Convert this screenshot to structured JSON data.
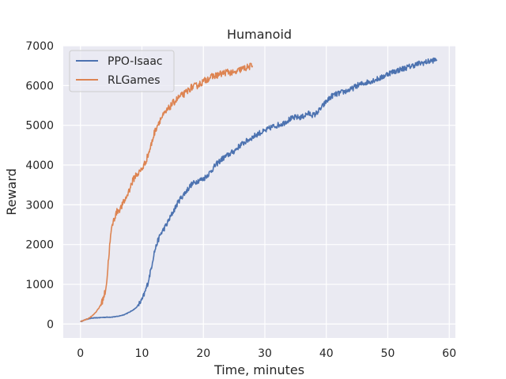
{
  "chart_data": {
    "type": "line",
    "title": "Humanoid",
    "xlabel": "Time, minutes",
    "ylabel": "Reward",
    "xlim": [
      -2.8,
      61.0
    ],
    "ylim": [
      -350,
      7000
    ],
    "xticks": [
      0,
      10,
      20,
      30,
      40,
      50,
      60
    ],
    "yticks": [
      0,
      1000,
      2000,
      3000,
      4000,
      5000,
      6000,
      7000
    ],
    "grid": true,
    "legend": "top-left",
    "series": [
      {
        "name": "PPO-Isaac",
        "color": "#4c72b0",
        "x": [
          0,
          0.5,
          1,
          1.5,
          2,
          3,
          4,
          5,
          6,
          7,
          8,
          9,
          10,
          10.5,
          11,
          11.5,
          12,
          12.5,
          13,
          14,
          15,
          16,
          17,
          18,
          19,
          20,
          21,
          22,
          23,
          24,
          25,
          26,
          27,
          28,
          29,
          30,
          31,
          32,
          33,
          34,
          35,
          36,
          37,
          38,
          39,
          40,
          41,
          42,
          43,
          44,
          45,
          46,
          47,
          48,
          49,
          50,
          51,
          52,
          53,
          54,
          55,
          56,
          57,
          58
        ],
        "y": [
          60,
          90,
          120,
          140,
          150,
          160,
          170,
          175,
          190,
          230,
          300,
          400,
          600,
          800,
          1050,
          1400,
          1800,
          2050,
          2250,
          2500,
          2800,
          3100,
          3300,
          3500,
          3600,
          3650,
          3800,
          4000,
          4150,
          4250,
          4350,
          4500,
          4600,
          4700,
          4800,
          4850,
          4950,
          5000,
          5050,
          5150,
          5200,
          5200,
          5300,
          5250,
          5400,
          5600,
          5750,
          5800,
          5850,
          5900,
          6000,
          6050,
          6100,
          6150,
          6200,
          6300,
          6350,
          6400,
          6450,
          6500,
          6550,
          6580,
          6620,
          6650
        ]
      },
      {
        "name": "RLGames",
        "color": "#dd8452",
        "x": [
          0,
          0.5,
          1,
          1.5,
          2,
          2.5,
          3,
          3.5,
          4,
          4.3,
          4.6,
          4.9,
          5.2,
          5.6,
          6,
          6.5,
          7,
          7.5,
          8,
          8.5,
          9,
          9.5,
          10,
          10.5,
          11,
          11.5,
          12,
          12.5,
          13,
          14,
          15,
          16,
          17,
          18,
          19,
          20,
          21,
          22,
          23,
          24,
          25,
          26,
          27,
          28
        ],
        "y": [
          60,
          90,
          120,
          160,
          220,
          300,
          400,
          550,
          800,
          1100,
          1700,
          2200,
          2500,
          2700,
          2850,
          2900,
          3050,
          3200,
          3400,
          3600,
          3750,
          3800,
          3900,
          4050,
          4250,
          4500,
          4800,
          5000,
          5150,
          5350,
          5550,
          5700,
          5800,
          5950,
          6000,
          6100,
          6200,
          6250,
          6300,
          6350,
          6300,
          6400,
          6450,
          6500
        ]
      }
    ]
  }
}
